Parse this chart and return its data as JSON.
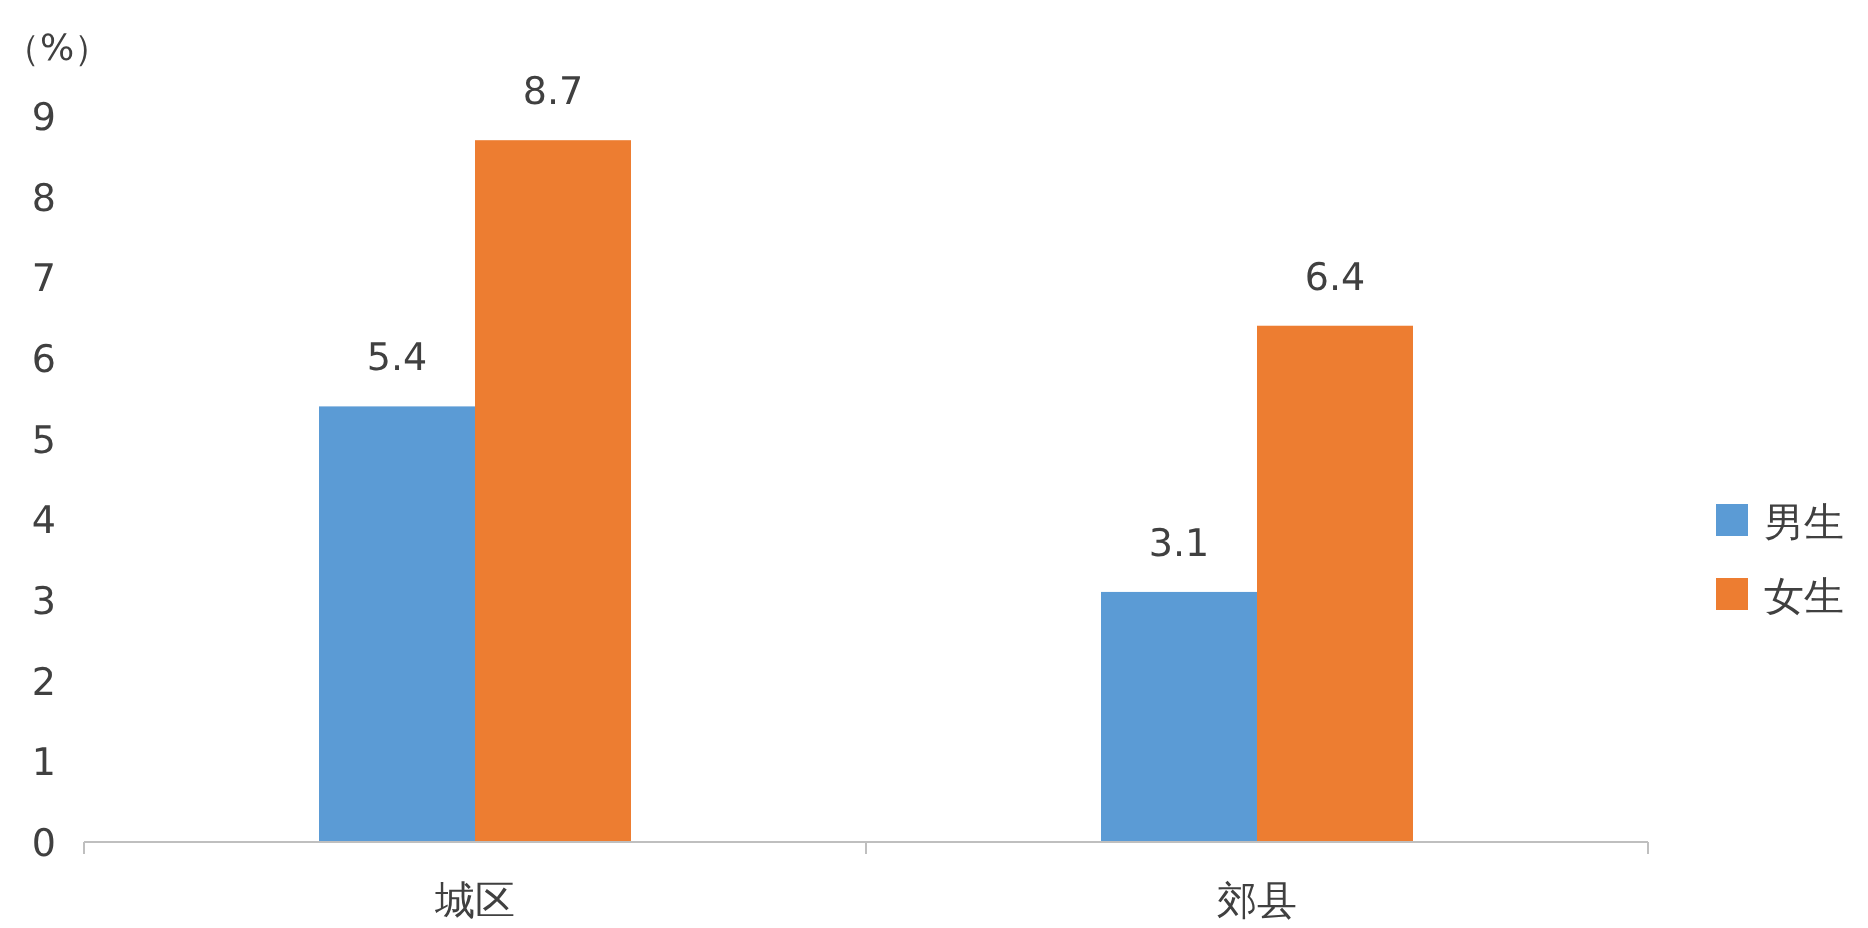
{
  "chart_data": {
    "type": "bar",
    "ylabel": "（%）",
    "categories": [
      "城区",
      "郊县"
    ],
    "series": [
      {
        "name": "男生",
        "color": "#5b9bd5",
        "values": [
          5.4,
          3.1
        ]
      },
      {
        "name": "女生",
        "color": "#ed7d31",
        "values": [
          8.7,
          6.4
        ]
      }
    ],
    "ylim": [
      0,
      9
    ],
    "yticks": [
      0,
      1,
      2,
      3,
      4,
      5,
      6,
      7,
      8,
      9
    ],
    "data_labels": true,
    "legend": "right"
  }
}
